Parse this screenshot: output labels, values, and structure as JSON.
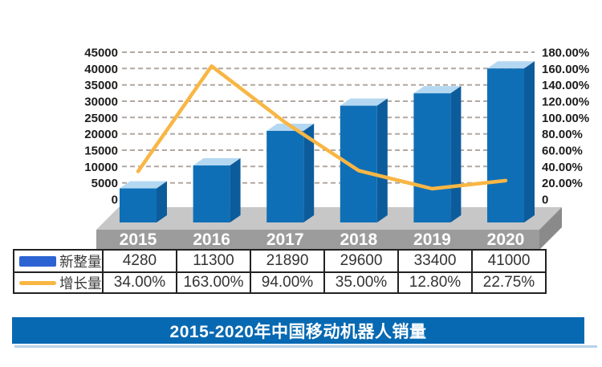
{
  "banner": {
    "title": "2015-2020年中国移动机器人销量"
  },
  "chart_data": {
    "type": "bar+line",
    "title": "2015-2020年中国移动机器人销量",
    "categories": [
      "2015",
      "2016",
      "2017",
      "2018",
      "2019",
      "2020"
    ],
    "series": [
      {
        "name": "新整量",
        "type": "bar",
        "axis": "left",
        "values": [
          4280,
          11300,
          21890,
          29600,
          33400,
          41000
        ]
      },
      {
        "name": "增长量",
        "type": "line",
        "axis": "right",
        "unit": "%",
        "values": [
          34.0,
          163.0,
          94.0,
          35.0,
          12.8,
          22.75
        ]
      }
    ],
    "left_axis": {
      "min": 0,
      "max": 45000,
      "step": 5000,
      "ticks": [
        "45000",
        "40000",
        "35000",
        "30000",
        "25000",
        "20000",
        "15000",
        "10000",
        "5000",
        "0"
      ]
    },
    "right_axis": {
      "min": 0,
      "max": 180,
      "step": 20,
      "ticks": [
        "180.00%",
        "160.00%",
        "140.00%",
        "120.00%",
        "100.00%",
        "80.00%",
        "60.00%",
        "40.00%",
        "20.00%",
        "0"
      ]
    },
    "grid": "dashed horizontal",
    "legend_position": "table-left"
  },
  "table": {
    "rows": [
      {
        "legend": "新整量",
        "swatch": "blue-bar",
        "values": [
          "4280",
          "11300",
          "21890",
          "29600",
          "33400",
          "41000"
        ]
      },
      {
        "legend": "增长量",
        "swatch": "orange-line",
        "values": [
          "34.00%",
          "163.00%",
          "94.00%",
          "35.00%",
          "12.80%",
          "22.75%"
        ]
      }
    ]
  },
  "colors": {
    "bar_front": "#0f6fb6",
    "bar_side": "#0c5c9c",
    "bar_top": "#b5d8f2",
    "line": "#f8b644",
    "grid": "#b2a8a0",
    "floor_top": "#c7c7c7",
    "floor_front": "#9c9c9c",
    "floor_side": "#8a8a8a",
    "axis_text": "#1d1d1d",
    "category_text": "#ffffff",
    "legend_bar": "#2c63d3",
    "legend_line": "#f8b644",
    "banner_bg": "#0769b2",
    "banner_underline": "#b8d2ea",
    "table_border": "#222222",
    "table_text": "#333333"
  }
}
